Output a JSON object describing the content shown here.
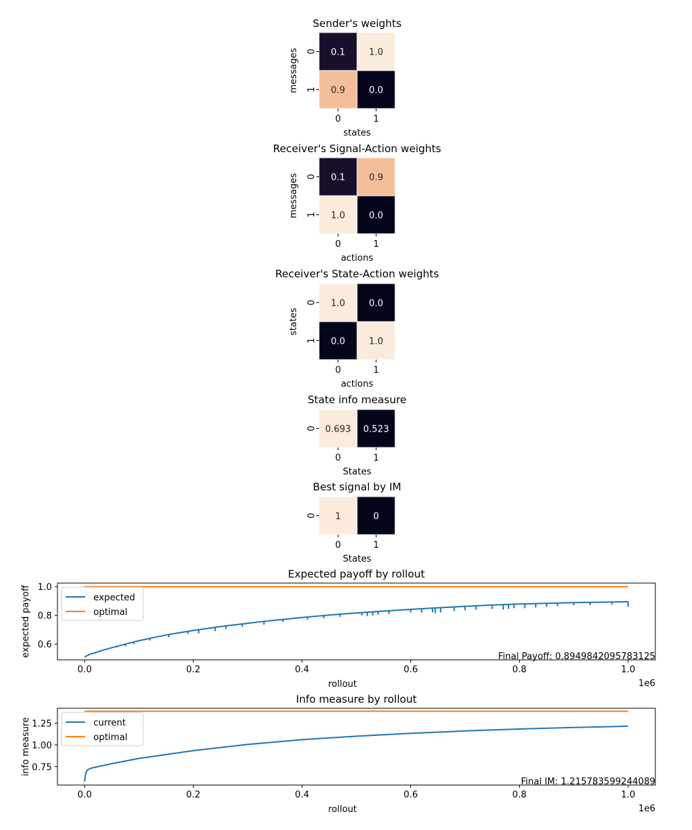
{
  "chart_data": [
    {
      "type": "heatmap",
      "title": "Sender's weights",
      "xlabel": "states",
      "ylabel": "messages",
      "x_ticks": [
        "0",
        "1"
      ],
      "y_ticks": [
        "0",
        "1"
      ],
      "values": [
        [
          0.1,
          1.0
        ],
        [
          0.9,
          0.0
        ]
      ],
      "cell_labels": [
        [
          "0.1",
          "1.0"
        ],
        [
          "0.9",
          "0.0"
        ]
      ],
      "grid_lines": "white",
      "colorbar": false
    },
    {
      "type": "heatmap",
      "title": "Receiver's Signal-Action weights",
      "xlabel": "actions",
      "ylabel": "messages",
      "x_ticks": [
        "0",
        "1"
      ],
      "y_ticks": [
        "0",
        "1"
      ],
      "values": [
        [
          0.1,
          0.9
        ],
        [
          1.0,
          0.0
        ]
      ],
      "cell_labels": [
        [
          "0.1",
          "0.9"
        ],
        [
          "1.0",
          "0.0"
        ]
      ],
      "grid_lines": "white",
      "colorbar": false
    },
    {
      "type": "heatmap",
      "title": "Receiver's State-Action weights",
      "xlabel": "actions",
      "ylabel": "states",
      "x_ticks": [
        "0",
        "1"
      ],
      "y_ticks": [
        "0",
        "1"
      ],
      "values": [
        [
          1.0,
          0.0
        ],
        [
          0.0,
          1.0
        ]
      ],
      "cell_labels": [
        [
          "1.0",
          "0.0"
        ],
        [
          "0.0",
          "1.0"
        ]
      ],
      "grid_lines": "white",
      "colorbar": false
    },
    {
      "type": "heatmap",
      "title": "State info measure",
      "xlabel": "States",
      "ylabel": "",
      "x_ticks": [
        "0",
        "1"
      ],
      "y_ticks": [
        "0"
      ],
      "values": [
        [
          0.693,
          0.523
        ]
      ],
      "cell_labels": [
        [
          "0.693",
          "0.523"
        ]
      ],
      "grid_lines": "white",
      "colorbar": false
    },
    {
      "type": "heatmap",
      "title": "Best signal by IM",
      "xlabel": "States",
      "ylabel": "",
      "x_ticks": [
        "0",
        "1"
      ],
      "y_ticks": [
        "0"
      ],
      "values": [
        [
          1,
          0
        ]
      ],
      "cell_labels": [
        [
          "1",
          "0"
        ]
      ],
      "grid_lines": "white",
      "colorbar": false
    },
    {
      "type": "line",
      "title": "Expected payoff by rollout",
      "xlabel": "rollout",
      "ylabel": "expected payoff",
      "x_multiplier_label": "1e6",
      "xlim": [
        -0.05,
        1.05
      ],
      "ylim": [
        0.49,
        1.025
      ],
      "x_ticks": [
        0.0,
        0.2,
        0.4,
        0.6,
        0.8,
        1.0
      ],
      "x_tick_labels": [
        "0.0",
        "0.2",
        "0.4",
        "0.6",
        "0.8",
        "1.0"
      ],
      "y_ticks": [
        0.6,
        0.8,
        1.0
      ],
      "y_tick_labels": [
        "0.6",
        "0.8",
        "1.0"
      ],
      "grid": false,
      "legend_position": "upper-left",
      "annotation": "Final Payoff: 0.8949842095783125",
      "series": [
        {
          "name": "expected",
          "color": "#1f77b4",
          "x": [
            0.0,
            0.005,
            0.01,
            0.02,
            0.03,
            0.05,
            0.07,
            0.1,
            0.13,
            0.16,
            0.2,
            0.25,
            0.3,
            0.35,
            0.4,
            0.45,
            0.5,
            0.55,
            0.6,
            0.65,
            0.7,
            0.75,
            0.8,
            0.85,
            0.9,
            0.95,
            1.0
          ],
          "y": [
            0.51,
            0.52,
            0.53,
            0.54,
            0.553,
            0.575,
            0.595,
            0.623,
            0.648,
            0.67,
            0.695,
            0.722,
            0.745,
            0.766,
            0.785,
            0.802,
            0.817,
            0.83,
            0.842,
            0.853,
            0.863,
            0.872,
            0.879,
            0.884,
            0.889,
            0.892,
            0.895
          ],
          "dips": [
            {
              "x": 0.045,
              "y": 0.565
            },
            {
              "x": 0.06,
              "y": 0.577
            },
            {
              "x": 0.075,
              "y": 0.585
            },
            {
              "x": 0.09,
              "y": 0.6
            },
            {
              "x": 0.12,
              "y": 0.625
            },
            {
              "x": 0.155,
              "y": 0.648
            },
            {
              "x": 0.19,
              "y": 0.67
            },
            {
              "x": 0.21,
              "y": 0.675
            },
            {
              "x": 0.24,
              "y": 0.69
            },
            {
              "x": 0.26,
              "y": 0.705
            },
            {
              "x": 0.29,
              "y": 0.72
            },
            {
              "x": 0.33,
              "y": 0.735
            },
            {
              "x": 0.365,
              "y": 0.755
            },
            {
              "x": 0.41,
              "y": 0.77
            },
            {
              "x": 0.44,
              "y": 0.78
            },
            {
              "x": 0.47,
              "y": 0.79
            },
            {
              "x": 0.51,
              "y": 0.8
            },
            {
              "x": 0.52,
              "y": 0.795
            },
            {
              "x": 0.53,
              "y": 0.8
            },
            {
              "x": 0.54,
              "y": 0.805
            },
            {
              "x": 0.56,
              "y": 0.81
            },
            {
              "x": 0.6,
              "y": 0.82
            },
            {
              "x": 0.62,
              "y": 0.82
            },
            {
              "x": 0.64,
              "y": 0.822
            },
            {
              "x": 0.645,
              "y": 0.815
            },
            {
              "x": 0.655,
              "y": 0.82
            },
            {
              "x": 0.68,
              "y": 0.83
            },
            {
              "x": 0.7,
              "y": 0.835
            },
            {
              "x": 0.72,
              "y": 0.84
            },
            {
              "x": 0.75,
              "y": 0.845
            },
            {
              "x": 0.77,
              "y": 0.84
            },
            {
              "x": 0.78,
              "y": 0.845
            },
            {
              "x": 0.79,
              "y": 0.85
            },
            {
              "x": 0.81,
              "y": 0.85
            },
            {
              "x": 0.83,
              "y": 0.855
            },
            {
              "x": 0.85,
              "y": 0.86
            },
            {
              "x": 0.87,
              "y": 0.865
            },
            {
              "x": 0.9,
              "y": 0.87
            },
            {
              "x": 0.93,
              "y": 0.87
            },
            {
              "x": 0.97,
              "y": 0.875
            },
            {
              "x": 1.0,
              "y": 0.86
            }
          ]
        },
        {
          "name": "optimal",
          "color": "#ff7f0e",
          "x": [
            0.0,
            1.0
          ],
          "y": [
            1.0,
            1.0
          ]
        }
      ]
    },
    {
      "type": "line",
      "title": "Info measure by rollout",
      "xlabel": "rollout",
      "ylabel": "info measure",
      "x_multiplier_label": "1e6",
      "xlim": [
        -0.05,
        1.05
      ],
      "ylim": [
        0.54,
        1.42
      ],
      "x_ticks": [
        0.0,
        0.2,
        0.4,
        0.6,
        0.8,
        1.0
      ],
      "x_tick_labels": [
        "0.0",
        "0.2",
        "0.4",
        "0.6",
        "0.8",
        "1.0"
      ],
      "y_ticks": [
        0.75,
        1.0,
        1.25
      ],
      "y_tick_labels": [
        "0.75",
        "1.00",
        "1.25"
      ],
      "grid": false,
      "legend_position": "upper-left",
      "annotation": "Final IM: 1.215783599244089",
      "series": [
        {
          "name": "current",
          "color": "#1f77b4",
          "x": [
            0.0,
            0.001,
            0.003,
            0.006,
            0.01,
            0.02,
            0.05,
            0.1,
            0.15,
            0.2,
            0.3,
            0.4,
            0.5,
            0.6,
            0.7,
            0.8,
            0.9,
            1.0
          ],
          "y": [
            0.58,
            0.64,
            0.69,
            0.715,
            0.73,
            0.745,
            0.785,
            0.845,
            0.89,
            0.935,
            1.005,
            1.06,
            1.1,
            1.132,
            1.16,
            1.182,
            1.2,
            1.215
          ]
        },
        {
          "name": "optimal",
          "color": "#ff7f0e",
          "x": [
            0.0,
            1.0
          ],
          "y": [
            1.386,
            1.386
          ]
        }
      ]
    }
  ]
}
